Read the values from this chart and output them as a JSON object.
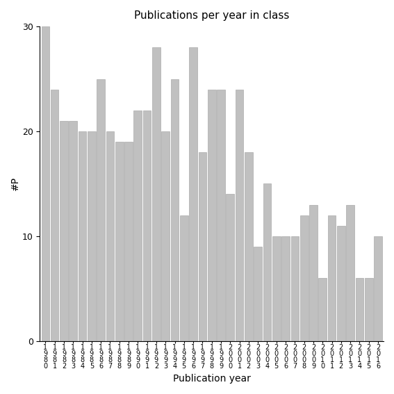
{
  "title": "Publications per year in class",
  "xlabel": "Publication year",
  "ylabel": "#P",
  "bar_color": "#c0c0c0",
  "edge_color": "#aaaaaa",
  "years": [
    1980,
    1981,
    1982,
    1983,
    1984,
    1985,
    1986,
    1987,
    1988,
    1989,
    1990,
    1991,
    1992,
    1993,
    1994,
    1995,
    1996,
    1997,
    1998,
    1999,
    2000,
    2001,
    2002,
    2003,
    2004,
    2005,
    2006,
    2007,
    2008,
    2009,
    2010,
    2011,
    2012,
    2013,
    2014,
    2015,
    2016
  ],
  "values": [
    30,
    24,
    21,
    21,
    20,
    20,
    25,
    20,
    19,
    19,
    22,
    22,
    28,
    20,
    25,
    12,
    28,
    18,
    24,
    24,
    14,
    24,
    18,
    9,
    15,
    10,
    10,
    10,
    12,
    13,
    6,
    12,
    11,
    13,
    6,
    6,
    10
  ],
  "ylim": [
    0,
    30
  ],
  "yticks": [
    0,
    10,
    20,
    30
  ],
  "background_color": "#ffffff",
  "title_fontsize": 11,
  "label_fontsize": 10,
  "tick_fontsize": 9,
  "xtick_fontsize": 7
}
